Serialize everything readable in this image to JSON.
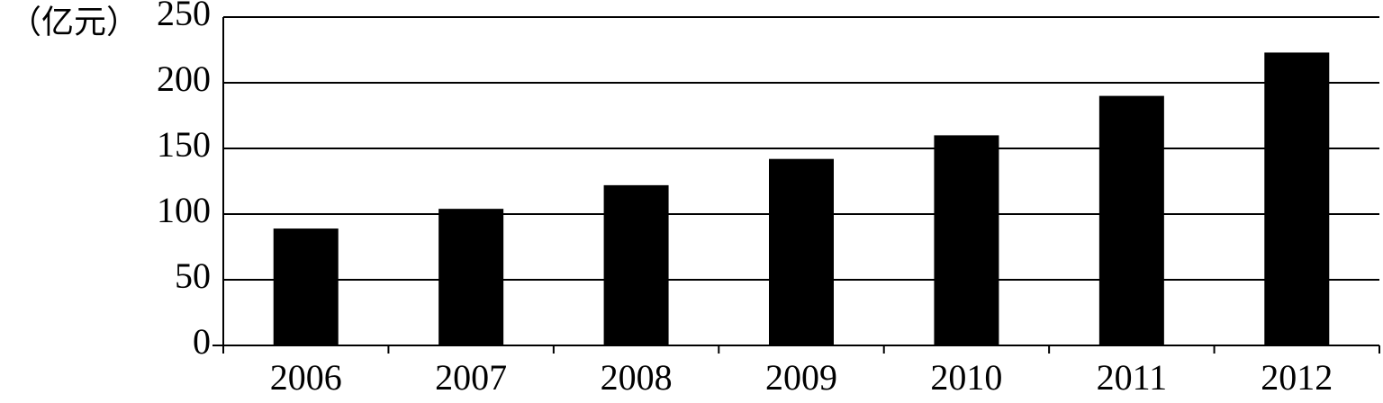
{
  "chart_data": {
    "type": "bar",
    "y_label": "（亿元）",
    "categories": [
      "2006",
      "2007",
      "2008",
      "2009",
      "2010",
      "2011",
      "2012"
    ],
    "values": [
      89,
      104,
      122,
      142,
      160,
      190,
      223
    ],
    "color": "#000000",
    "ylim": [
      0,
      250
    ],
    "yticks": [
      0,
      50,
      100,
      150,
      200,
      250
    ],
    "grid": true
  }
}
